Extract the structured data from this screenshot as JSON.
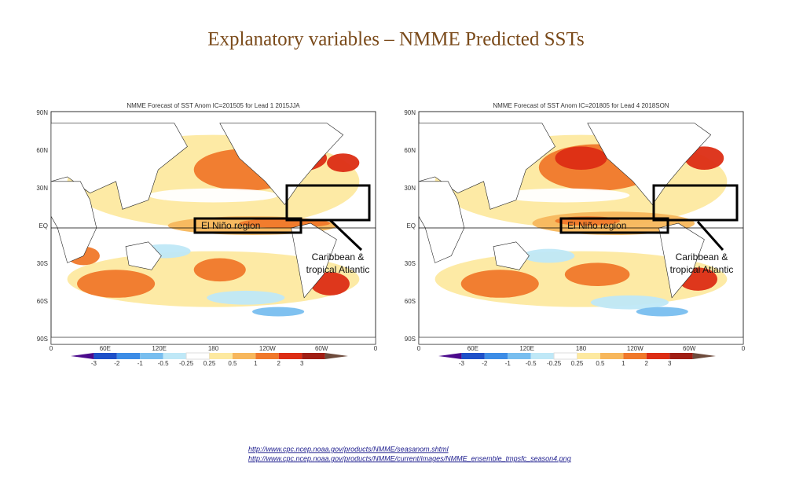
{
  "header": {
    "title": "Explanatory variables – NMME Predicted SSTs"
  },
  "maps": [
    {
      "title": "NMME Forecast of SST Anom IC=201505 for Lead 1 2015JJA",
      "el_nino_label": "El Niño region",
      "atlantic_label": [
        "Caribbean &",
        "tropical Atlantic"
      ]
    },
    {
      "title": "NMME Forecast of SST Anom IC=201805 for Lead 4 2018SON",
      "el_nino_label": "El Niño region",
      "atlantic_label": [
        "Caribbean &",
        "tropical Atlantic"
      ]
    }
  ],
  "lat_labels": [
    "90N",
    "60N",
    "30N",
    "EQ",
    "30S",
    "60S",
    "90S"
  ],
  "lon_labels": [
    "0",
    "60E",
    "120E",
    "180",
    "120W",
    "60W",
    "0"
  ],
  "colorbar": {
    "ticks": [
      -3,
      -2,
      -1,
      -0.5,
      -0.25,
      0.25,
      0.5,
      1,
      2,
      3
    ],
    "colors": [
      "#4b0a8c",
      "#1e50c8",
      "#3c8ce6",
      "#78beef",
      "#bfe8f7",
      "#ffffff",
      "#fde9a0",
      "#f7b75c",
      "#f0782a",
      "#dc2d14",
      "#a01e14",
      "#6e4b3c"
    ]
  },
  "footer": {
    "links": [
      "http://www.cpc.ncep.noaa.gov/products/NMME/seasanom.shtml",
      "http://www.cpc.ncep.noaa.gov/products/NMME/current/images/NMME_ensemble_tmpsfc_season4.png"
    ]
  }
}
